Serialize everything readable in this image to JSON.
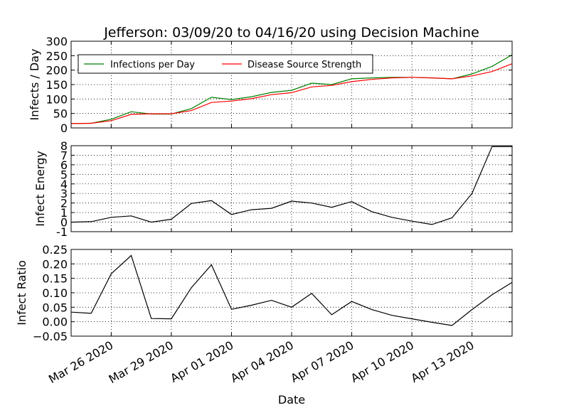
{
  "chart_data": {
    "title": "Jefferson: 03/09/20 to 04/16/20 using Decision Machine",
    "xlabel": "Date",
    "x_ticks": [
      "Mar 26 2020",
      "Mar 29 2020",
      "Apr 01 2020",
      "Apr 04 2020",
      "Apr 07 2020",
      "Apr 10 2020",
      "Apr 13 2020"
    ],
    "x_tick_days": [
      2,
      5,
      8,
      11,
      14,
      17,
      20
    ],
    "x_range": [
      0,
      22
    ],
    "days": [
      0,
      1,
      2,
      3,
      4,
      5,
      6,
      7,
      8,
      9,
      10,
      11,
      12,
      13,
      14,
      15,
      16,
      17,
      18,
      19,
      20,
      21,
      22
    ],
    "panels": [
      {
        "type": "line",
        "ylabel": "Infects / Day",
        "ylim": [
          0,
          300
        ],
        "yticks": [
          0,
          50,
          100,
          150,
          200,
          250,
          300
        ],
        "grid": true,
        "legend": "top-left",
        "series": [
          {
            "name": "Infections per Day",
            "color": "#008000",
            "values": [
              15,
              16,
              30,
              56,
              48,
              48,
              67,
              106,
              98,
              108,
              123,
              130,
              155,
              150,
              170,
              173,
              175,
              175,
              173,
              170,
              187,
              213,
              253
            ]
          },
          {
            "name": "Disease Source Strength",
            "color": "#ff0000",
            "values": [
              15,
              16,
              25,
              47,
              49,
              49,
              60,
              88,
              93,
              101,
              115,
              122,
              142,
              147,
              160,
              168,
              173,
              175,
              173,
              170,
              180,
              195,
              222
            ]
          }
        ]
      },
      {
        "type": "line",
        "ylabel": "Infect Energy",
        "ylim": [
          -1,
          8
        ],
        "yticks": [
          -1,
          0,
          1,
          2,
          3,
          4,
          5,
          6,
          7,
          8
        ],
        "grid": true,
        "series": [
          {
            "name": "Infect Energy",
            "color": "#000000",
            "values": [
              0.0,
              0.05,
              0.5,
              0.65,
              0.0,
              0.3,
              1.95,
              2.25,
              0.8,
              1.3,
              1.45,
              2.2,
              2.0,
              1.55,
              2.15,
              1.1,
              0.5,
              0.1,
              -0.25,
              0.45,
              3.0,
              7.9,
              7.9
            ]
          }
        ]
      },
      {
        "type": "line",
        "ylabel": "Infect Ratio",
        "ylim": [
          -0.05,
          0.25
        ],
        "yticks": [
          -0.05,
          0.0,
          0.05,
          0.1,
          0.15,
          0.2,
          0.25
        ],
        "ytick_labels": [
          "−0.05",
          "0.00",
          "0.05",
          "0.10",
          "0.15",
          "0.20",
          "0.25"
        ],
        "grid": true,
        "series": [
          {
            "name": "Infect Ratio",
            "color": "#000000",
            "values": [
              0.033,
              0.029,
              0.166,
              0.229,
              0.011,
              0.01,
              0.118,
              0.197,
              0.043,
              0.057,
              0.074,
              0.05,
              0.098,
              0.024,
              0.07,
              0.042,
              0.022,
              0.01,
              -0.002,
              -0.013,
              0.042,
              0.093,
              0.136
            ]
          }
        ]
      }
    ]
  }
}
